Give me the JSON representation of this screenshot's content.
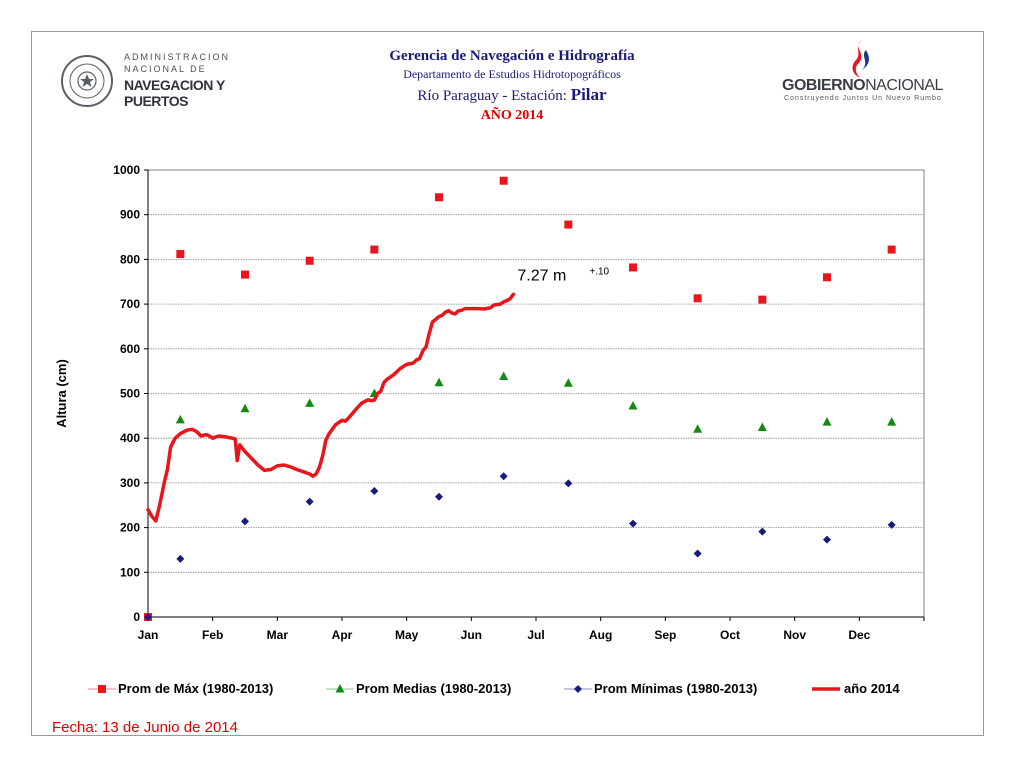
{
  "header": {
    "line1": "Gerencia de Navegación e Hidrografía",
    "line2": "Departamento de Estudios Hidrotopográficos",
    "line3_prefix": "Río Paraguay  -  Estación: ",
    "line3_station": "Pilar",
    "line4": "AÑO 2014"
  },
  "logo_left": {
    "line1": "ADMINISTRACION",
    "line2": "NACIONAL DE",
    "line3": "NAVEGACION Y",
    "line4": "PUERTOS",
    "icon": "paraguay-seal-icon"
  },
  "logo_right": {
    "main_bold": "GOBIERNO",
    "main_rest": "NACIONAL",
    "tagline": "Construyendo Juntos Un Nuevo Rumbo",
    "icon": "flame-logo-icon"
  },
  "footer": {
    "fecha": "Fecha:  13  de Junio de 2014"
  },
  "chart_data": {
    "type": "line",
    "ylabel": "Altura (cm)",
    "xlabel": "",
    "ylim": [
      0,
      1000
    ],
    "yticks": [
      0,
      100,
      200,
      300,
      400,
      500,
      600,
      700,
      800,
      900,
      1000
    ],
    "categories": [
      "Jan",
      "Feb",
      "Mar",
      "Apr",
      "May",
      "Jun",
      "Jul",
      "Aug",
      "Sep",
      "Oct",
      "Nov",
      "Dec"
    ],
    "grid": true,
    "legend_position": "bottom",
    "annotation": {
      "text": "7.27 m",
      "superscript": "+.10"
    },
    "series": [
      {
        "name": "Prom de Máx (1980-2013)",
        "marker": "square",
        "color": "#e8151c",
        "points": [
          [
            0,
            0
          ],
          [
            0.5,
            812
          ],
          [
            1.5,
            766
          ],
          [
            2.5,
            797
          ],
          [
            3.5,
            822
          ],
          [
            4.5,
            939
          ],
          [
            5.5,
            976
          ],
          [
            6.5,
            878
          ],
          [
            7.5,
            782
          ],
          [
            8.5,
            713
          ],
          [
            9.5,
            710
          ],
          [
            10.5,
            760
          ],
          [
            11.5,
            822
          ]
        ]
      },
      {
        "name": "Prom Medias (1980-2013)",
        "marker": "triangle",
        "color": "#138a13",
        "points": [
          [
            0.5,
            441
          ],
          [
            1.5,
            466
          ],
          [
            2.5,
            478
          ],
          [
            3.5,
            500
          ],
          [
            4.5,
            524
          ],
          [
            5.5,
            538
          ],
          [
            6.5,
            523
          ],
          [
            7.5,
            472
          ],
          [
            8.5,
            420
          ],
          [
            9.5,
            424
          ],
          [
            10.5,
            436
          ],
          [
            11.5,
            436
          ]
        ]
      },
      {
        "name": "Prom Mínimas (1980-2013)",
        "marker": "diamond",
        "color": "#1a1a7a",
        "points": [
          [
            0,
            0
          ],
          [
            0.5,
            130
          ],
          [
            1.5,
            214
          ],
          [
            2.5,
            258
          ],
          [
            3.5,
            282
          ],
          [
            4.5,
            269
          ],
          [
            5.5,
            315
          ],
          [
            6.5,
            299
          ],
          [
            7.5,
            209
          ],
          [
            8.5,
            142
          ],
          [
            9.5,
            191
          ],
          [
            10.5,
            173
          ],
          [
            11.5,
            206
          ]
        ]
      },
      {
        "name": "año 2014",
        "marker": "line",
        "color": "#e8151c",
        "points": [
          [
            0,
            240
          ],
          [
            0.06,
            225
          ],
          [
            0.12,
            215
          ],
          [
            0.18,
            250
          ],
          [
            0.25,
            300
          ],
          [
            0.3,
            330
          ],
          [
            0.35,
            380
          ],
          [
            0.42,
            400
          ],
          [
            0.5,
            410
          ],
          [
            0.6,
            418
          ],
          [
            0.68,
            420
          ],
          [
            0.75,
            415
          ],
          [
            0.82,
            405
          ],
          [
            0.9,
            408
          ],
          [
            0.95,
            405
          ],
          [
            1.0,
            400
          ],
          [
            1.05,
            403
          ],
          [
            1.1,
            405
          ],
          [
            1.2,
            403
          ],
          [
            1.3,
            400
          ],
          [
            1.35,
            398
          ],
          [
            1.38,
            350
          ],
          [
            1.42,
            385
          ],
          [
            1.5,
            370
          ],
          [
            1.6,
            355
          ],
          [
            1.7,
            340
          ],
          [
            1.8,
            328
          ],
          [
            1.9,
            330
          ],
          [
            2.0,
            338
          ],
          [
            2.1,
            340
          ],
          [
            2.2,
            336
          ],
          [
            2.3,
            330
          ],
          [
            2.4,
            325
          ],
          [
            2.5,
            320
          ],
          [
            2.55,
            315
          ],
          [
            2.6,
            320
          ],
          [
            2.65,
            335
          ],
          [
            2.7,
            360
          ],
          [
            2.75,
            395
          ],
          [
            2.8,
            410
          ],
          [
            2.9,
            430
          ],
          [
            3.0,
            440
          ],
          [
            3.05,
            438
          ],
          [
            3.1,
            445
          ],
          [
            3.2,
            462
          ],
          [
            3.3,
            478
          ],
          [
            3.4,
            486
          ],
          [
            3.45,
            484
          ],
          [
            3.5,
            485
          ],
          [
            3.55,
            500
          ],
          [
            3.6,
            505
          ],
          [
            3.65,
            525
          ],
          [
            3.7,
            532
          ],
          [
            3.8,
            542
          ],
          [
            3.9,
            556
          ],
          [
            4.0,
            565
          ],
          [
            4.1,
            568
          ],
          [
            4.15,
            575
          ],
          [
            4.2,
            578
          ],
          [
            4.25,
            595
          ],
          [
            4.3,
            605
          ],
          [
            4.35,
            635
          ],
          [
            4.4,
            660
          ],
          [
            4.5,
            672
          ],
          [
            4.55,
            675
          ],
          [
            4.6,
            682
          ],
          [
            4.65,
            685
          ],
          [
            4.7,
            680
          ],
          [
            4.75,
            678
          ],
          [
            4.8,
            685
          ],
          [
            4.85,
            686
          ],
          [
            4.9,
            690
          ],
          [
            5.0,
            690
          ],
          [
            5.1,
            690
          ],
          [
            5.2,
            689
          ],
          [
            5.3,
            692
          ],
          [
            5.35,
            698
          ],
          [
            5.45,
            700
          ],
          [
            5.5,
            705
          ],
          [
            5.55,
            708
          ],
          [
            5.6,
            712
          ],
          [
            5.65,
            722
          ]
        ]
      }
    ]
  }
}
